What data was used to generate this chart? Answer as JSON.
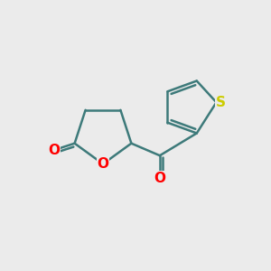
{
  "background_color": "#ebebeb",
  "bond_color": "#3d7a7a",
  "bond_width": 1.8,
  "O_color": "#ff0000",
  "S_color": "#cccc00",
  "font_size": 11,
  "figsize": [
    3.0,
    3.0
  ],
  "dpi": 100,
  "xlim": [
    0,
    10
  ],
  "ylim": [
    0,
    10
  ]
}
